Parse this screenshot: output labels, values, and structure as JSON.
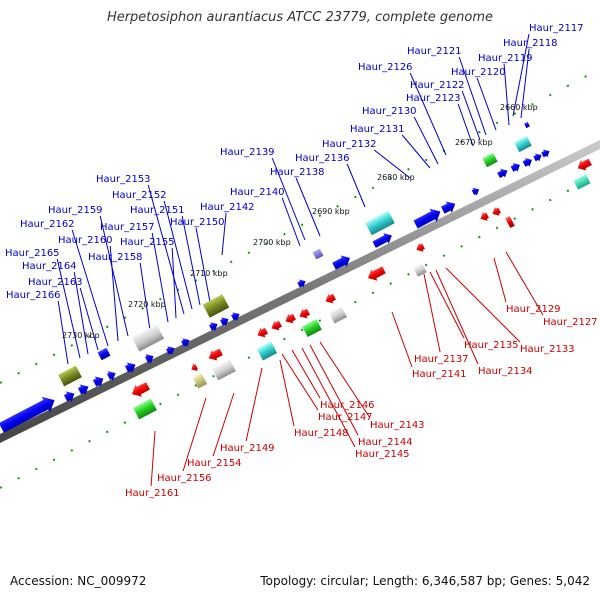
{
  "title": "Herpetosiphon aurantiacus ATCC 23779, complete genome",
  "footer": {
    "accession": "Accession: NC_009972",
    "topology": "Topology: circular; Length: 6,346,587 bp; Genes: 5,042"
  },
  "colors": {
    "forward_label": "#0000cc",
    "reverse_label": "#cc0000",
    "forward_gene": "#0000ee",
    "reverse_gene": "#ee0000",
    "backbone": "#888888"
  },
  "tick_labels": [
    "2660 kbp",
    "2670 kbp",
    "2680 kbp",
    "2690 kbp",
    "2700 kbp",
    "2710 kbp",
    "2720 kbp",
    "2730 kbp"
  ],
  "forward_genes": [
    "Haur_2117",
    "Haur_2118",
    "Haur_2119",
    "Haur_2120",
    "Haur_2121",
    "Haur_2122",
    "Haur_2123",
    "Haur_2126",
    "Haur_2130",
    "Haur_2131",
    "Haur_2132",
    "Haur_2136",
    "Haur_2138",
    "Haur_2139",
    "Haur_2140",
    "Haur_2142",
    "Haur_2150",
    "Haur_2151",
    "Haur_2152",
    "Haur_2153",
    "Haur_2155",
    "Haur_2157",
    "Haur_2158",
    "Haur_2159",
    "Haur_2160",
    "Haur_2162",
    "Haur_2163",
    "Haur_2164",
    "Haur_2165",
    "Haur_2166"
  ],
  "reverse_genes": [
    "Haur_2127",
    "Haur_2129",
    "Haur_2133",
    "Haur_2134",
    "Haur_2135",
    "Haur_2137",
    "Haur_2141",
    "Haur_2143",
    "Haur_2144",
    "Haur_2145",
    "Haur_2146",
    "Haur_2147",
    "Haur_2148",
    "Haur_2149",
    "Haur_2154",
    "Haur_2156",
    "Haur_2161"
  ]
}
